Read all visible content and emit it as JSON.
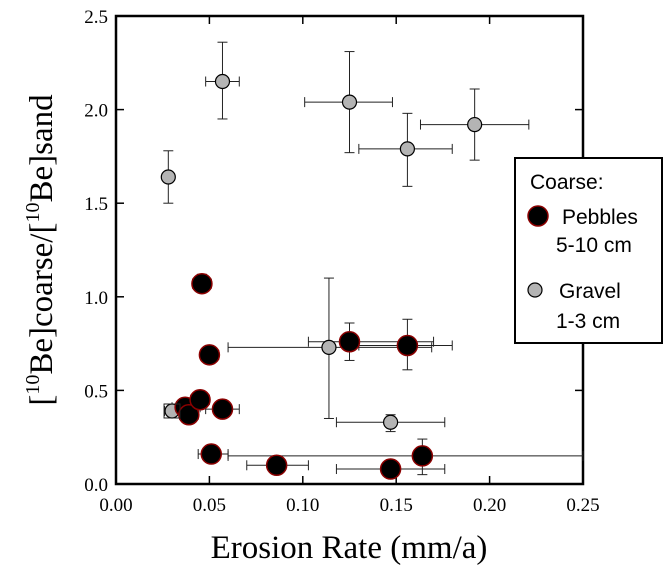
{
  "chart_data": {
    "type": "scatter",
    "xlabel": "Erosion Rate (mm/a)",
    "ylabel_parts": [
      "[",
      "10",
      "Be]coarse/[",
      "10",
      "Be]sand"
    ],
    "xlim": [
      0.0,
      0.25
    ],
    "ylim": [
      0.0,
      2.5
    ],
    "x_ticks": [
      "0.00",
      "0.05",
      "0.10",
      "0.15",
      "0.20",
      "0.25"
    ],
    "y_ticks": [
      "0.0",
      "0.5",
      "1.0",
      "1.5",
      "2.0",
      "2.5"
    ],
    "legend": {
      "title": "Coarse:",
      "placement": "right",
      "entries": [
        {
          "line1": "Pebbles",
          "line2": "5-10 cm"
        },
        {
          "line1": "Gravel",
          "line2": "1-3 cm"
        }
      ]
    },
    "series": [
      {
        "key": "pebbles",
        "color": "#000000",
        "edge_color": "#8b0000",
        "points": [
          {
            "x": 0.046,
            "y": 1.07,
            "xerr": [
              0.041,
              0.051
            ],
            "yerr": [
              1.03,
              1.12
            ]
          },
          {
            "x": 0.05,
            "y": 0.69,
            "xerr": [
              0.046,
              0.055
            ]
          },
          {
            "x": 0.125,
            "y": 0.76,
            "xerr": [
              0.103,
              0.17
            ],
            "yerr": [
              0.66,
              0.86
            ]
          },
          {
            "x": 0.156,
            "y": 0.74,
            "xerr": [
              0.13,
              0.18
            ],
            "yerr": [
              0.61,
              0.88
            ]
          },
          {
            "x": 0.037,
            "y": 0.41,
            "xerr": [
              0.03,
              0.045
            ]
          },
          {
            "x": 0.039,
            "y": 0.37,
            "xerr": [
              0.034,
              0.044
            ]
          },
          {
            "x": 0.045,
            "y": 0.45,
            "xerr": [
              0.04,
              0.05
            ]
          },
          {
            "x": 0.057,
            "y": 0.4,
            "xerr": [
              0.048,
              0.066
            ]
          },
          {
            "x": 0.051,
            "y": 0.16,
            "xerr": [
              0.044,
              0.06
            ]
          },
          {
            "x": 0.086,
            "y": 0.1,
            "xerr": [
              0.07,
              0.103
            ]
          },
          {
            "x": 0.147,
            "y": 0.08,
            "xerr": [
              0.118,
              0.176
            ]
          },
          {
            "x": 0.164,
            "y": 0.15,
            "xerr": [
              0.06,
              0.25
            ],
            "yerr": [
              0.05,
              0.24
            ]
          }
        ]
      },
      {
        "key": "gravel",
        "color": "#b4b4b4",
        "edge_color": "#000000",
        "points": [
          {
            "x": 0.057,
            "y": 2.15,
            "xerr": [
              0.048,
              0.066
            ],
            "yerr": [
              1.95,
              2.36
            ]
          },
          {
            "x": 0.125,
            "y": 2.04,
            "xerr": [
              0.101,
              0.148
            ],
            "yerr": [
              1.77,
              2.31
            ]
          },
          {
            "x": 0.156,
            "y": 1.79,
            "xerr": [
              0.13,
              0.18
            ],
            "yerr": [
              1.59,
              1.98
            ]
          },
          {
            "x": 0.192,
            "y": 1.92,
            "xerr": [
              0.163,
              0.221
            ],
            "yerr": [
              1.73,
              2.11
            ]
          },
          {
            "x": 0.028,
            "y": 1.64,
            "yerr": [
              1.5,
              1.78
            ]
          },
          {
            "x": 0.114,
            "y": 0.73,
            "xerr": [
              0.06,
              0.169
            ],
            "yerr": [
              0.35,
              1.1
            ]
          },
          {
            "x": 0.147,
            "y": 0.33,
            "xerr": [
              0.118,
              0.176
            ],
            "yerr": [
              0.28,
              0.37
            ]
          },
          {
            "x": 0.03,
            "y": 0.39,
            "xerr": [
              0.026,
              0.034
            ]
          }
        ]
      }
    ]
  }
}
